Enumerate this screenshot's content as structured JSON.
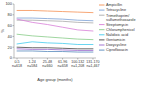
{
  "chart_data": {
    "type": "line",
    "categories": [
      "0-5\nn=618",
      "1-24\nn=584",
      "25-48\nn=660",
      "61-96\nn=658",
      "100-132\nn=1,208",
      "131-170\nn=1,467"
    ],
    "xlabel": "Age group (months)",
    "ylabel": "%",
    "series": [
      {
        "name": "Ampicillin",
        "color": "#f59154",
        "values": [
          88,
          88,
          87,
          86,
          85,
          84
        ]
      },
      {
        "name": "Tetracycline",
        "color": "#7b9fd4",
        "values": [
          74,
          74,
          73,
          72,
          70,
          69
        ]
      },
      {
        "name": "Trimethoprim/\nsulfamethoxazole",
        "color": "#aaaaaa",
        "values": [
          70,
          70,
          69,
          68,
          66,
          65
        ]
      },
      {
        "name": "Streptomycin",
        "color": "#d87fd8",
        "values": [
          72,
          66,
          62,
          57,
          52,
          50
        ]
      },
      {
        "name": "Chloramphenicol",
        "color": "#88cc88",
        "values": [
          44,
          41,
          39,
          37,
          35,
          34
        ]
      },
      {
        "name": "Nalidixic acid",
        "color": "#44ccee",
        "values": [
          26,
          30,
          28,
          27,
          25,
          25
        ]
      },
      {
        "name": "Gentamicin",
        "color": "#444444",
        "values": [
          20,
          19,
          19,
          18,
          17,
          17
        ]
      },
      {
        "name": "Doxycycline",
        "color": "#9966cc",
        "values": [
          17,
          16,
          16,
          15,
          14,
          14
        ]
      },
      {
        "name": "Ciprofloxacin",
        "color": "#5588bb",
        "values": [
          13,
          13,
          12,
          12,
          11,
          11
        ]
      }
    ],
    "ylim": [
      0,
      100
    ],
    "yticks": [
      0,
      20,
      40,
      60,
      80,
      100
    ],
    "grid": false,
    "legend": "right"
  }
}
